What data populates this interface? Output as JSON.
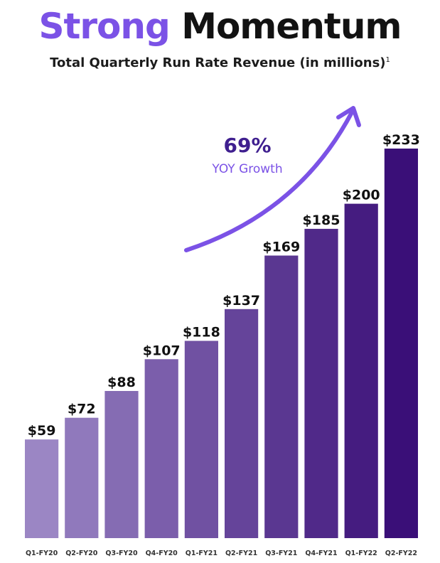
{
  "header": {
    "title_accent": "Strong",
    "title_main": "Momentum",
    "subtitle": "Total Quarterly Run Rate Revenue (in millions)",
    "footnote_mark": "1"
  },
  "annotation": {
    "growth_value": "69%",
    "growth_label": "YOY Growth"
  },
  "colors": {
    "accent": "#7b52e6",
    "bar_start": "#9b86c4",
    "bar_end": "#3a0f78"
  },
  "chart_data": {
    "type": "bar",
    "categories": [
      "Q1-FY20",
      "Q2-FY20",
      "Q3-FY20",
      "Q4-FY20",
      "Q1-FY21",
      "Q2-FY21",
      "Q3-FY21",
      "Q4-FY21",
      "Q1-FY22",
      "Q2-FY22"
    ],
    "values": [
      59,
      72,
      88,
      107,
      118,
      137,
      169,
      185,
      200,
      233
    ],
    "value_labels": [
      "$59",
      "$72",
      "$88",
      "$107",
      "$118",
      "$137",
      "$169",
      "$185",
      "$200",
      "$233"
    ],
    "title": "Total Quarterly Run Rate Revenue (in millions)",
    "xlabel": "",
    "ylabel": "",
    "grid": false
  }
}
